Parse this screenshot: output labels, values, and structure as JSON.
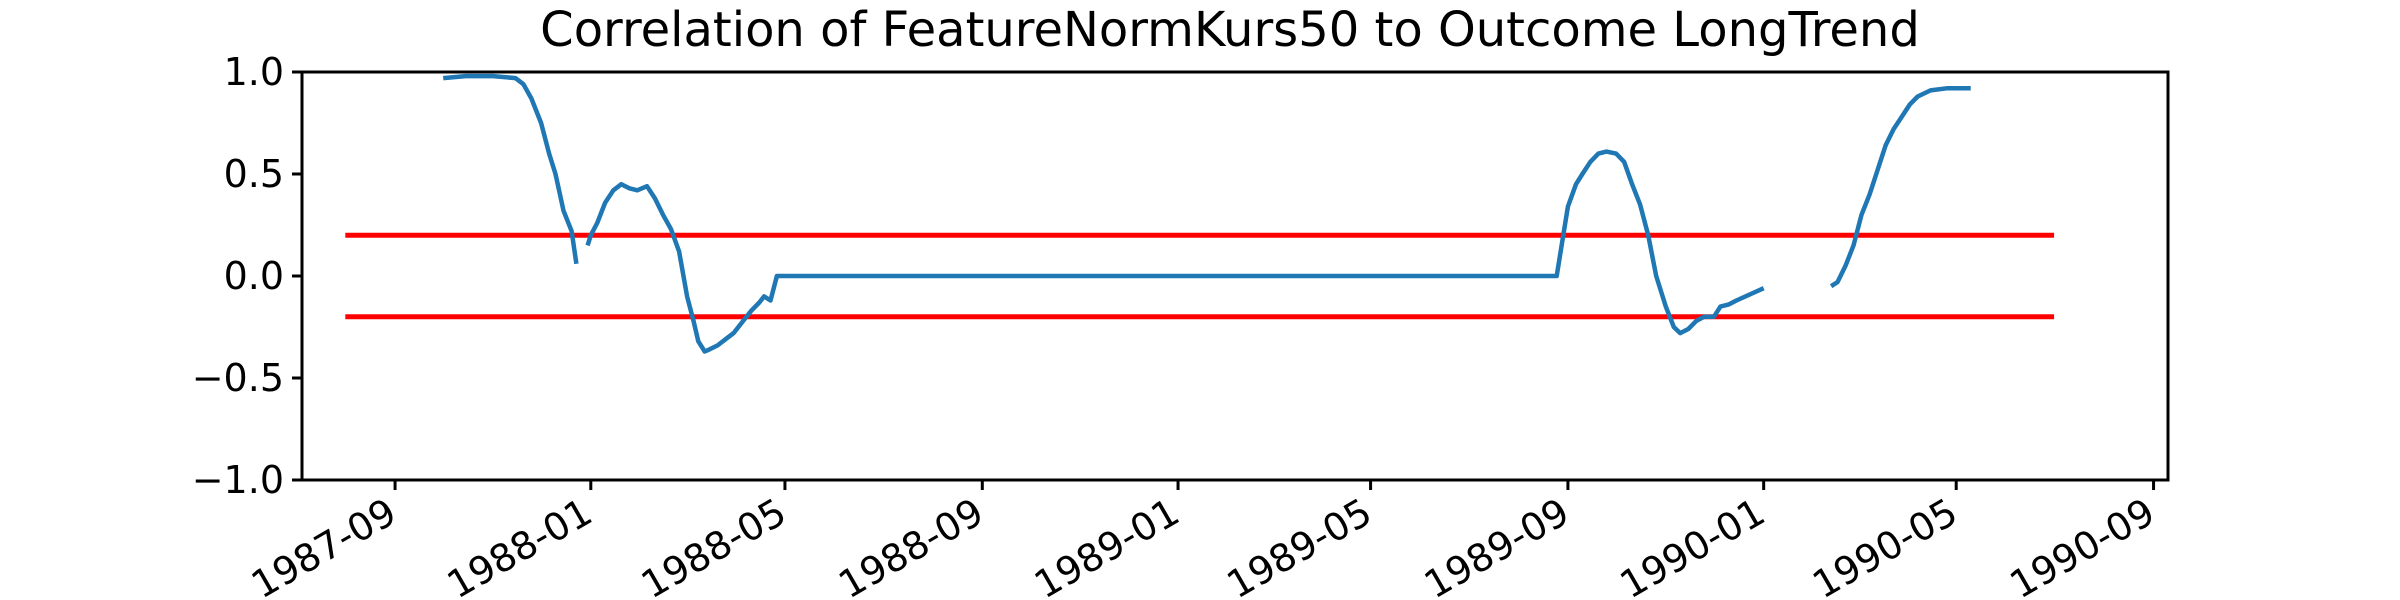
{
  "chart_data": {
    "type": "line",
    "title": "Correlation of FeatureNormKurs50 to Outcome LongTrend",
    "xlabel": "",
    "ylabel": "",
    "x_axis": "date",
    "xlim": [
      "1987-07-05",
      "1990-09-10"
    ],
    "ylim": [
      -1.0,
      1.0
    ],
    "grid": false,
    "legend": "none",
    "x_ticks": [
      "1987-09",
      "1988-01",
      "1988-05",
      "1988-09",
      "1989-01",
      "1989-05",
      "1989-09",
      "1990-01",
      "1990-05",
      "1990-09"
    ],
    "y_ticks": [
      1.0,
      0.5,
      0.0,
      -0.5,
      -1.0
    ],
    "y_tick_labels": [
      "1.0",
      "0.5",
      "0.0",
      "−0.5",
      "−1.0"
    ],
    "colors": {
      "series": "#1f77b4",
      "threshold": "#ff0000",
      "axes": "#000000"
    },
    "series": [
      {
        "segments": [
          [
            [
              "1987-10-01",
              0.97
            ],
            [
              "1987-10-15",
              0.98
            ],
            [
              "1987-11-01",
              0.98
            ],
            [
              "1987-11-15",
              0.97
            ],
            [
              "1987-11-20",
              0.94
            ],
            [
              "1987-11-25",
              0.87
            ],
            [
              "1987-12-01",
              0.75
            ],
            [
              "1987-12-06",
              0.6
            ],
            [
              "1987-12-10",
              0.5
            ],
            [
              "1987-12-15",
              0.32
            ],
            [
              "1987-12-20",
              0.22
            ],
            [
              "1987-12-23",
              0.06
            ]
          ],
          [
            [
              "1987-12-30",
              0.15
            ],
            [
              "1988-01-01",
              0.2
            ],
            [
              "1988-01-05",
              0.26
            ],
            [
              "1988-01-10",
              0.36
            ],
            [
              "1988-01-15",
              0.42
            ],
            [
              "1988-01-20",
              0.45
            ],
            [
              "1988-01-25",
              0.43
            ],
            [
              "1988-01-30",
              0.42
            ],
            [
              "1988-02-05",
              0.44
            ],
            [
              "1988-02-10",
              0.38
            ],
            [
              "1988-02-15",
              0.3
            ],
            [
              "1988-02-20",
              0.23
            ],
            [
              "1988-02-25",
              0.12
            ],
            [
              "1988-03-01",
              -0.1
            ],
            [
              "1988-03-05",
              -0.22
            ],
            [
              "1988-03-08",
              -0.32
            ],
            [
              "1988-03-12",
              -0.37
            ],
            [
              "1988-03-15",
              -0.36
            ],
            [
              "1988-03-20",
              -0.34
            ],
            [
              "1988-03-25",
              -0.31
            ],
            [
              "1988-03-30",
              -0.28
            ],
            [
              "1988-04-05",
              -0.22
            ],
            [
              "1988-04-10",
              -0.17
            ],
            [
              "1988-04-15",
              -0.13
            ],
            [
              "1988-04-18",
              -0.1
            ],
            [
              "1988-04-22",
              -0.12
            ],
            [
              "1988-04-26",
              0.0
            ],
            [
              "1988-05-05",
              0.0
            ],
            [
              "1989-08-25",
              0.0
            ],
            [
              "1989-09-01",
              0.34
            ],
            [
              "1989-09-06",
              0.45
            ],
            [
              "1989-09-10",
              0.5
            ],
            [
              "1989-09-15",
              0.56
            ],
            [
              "1989-09-20",
              0.6
            ],
            [
              "1989-09-25",
              0.61
            ],
            [
              "1989-10-01",
              0.6
            ],
            [
              "1989-10-06",
              0.56
            ],
            [
              "1989-10-11",
              0.45
            ],
            [
              "1989-10-16",
              0.35
            ],
            [
              "1989-10-21",
              0.2
            ],
            [
              "1989-10-26",
              0.0
            ],
            [
              "1989-11-01",
              -0.15
            ],
            [
              "1989-11-06",
              -0.25
            ],
            [
              "1989-11-10",
              -0.28
            ],
            [
              "1989-11-15",
              -0.26
            ],
            [
              "1989-11-20",
              -0.22
            ],
            [
              "1989-11-25",
              -0.2
            ],
            [
              "1989-12-01",
              -0.2
            ],
            [
              "1989-12-05",
              -0.15
            ],
            [
              "1989-12-10",
              -0.14
            ],
            [
              "1989-12-15",
              -0.12
            ],
            [
              "1990-01-01",
              -0.06
            ]
          ],
          [
            [
              "1990-02-12",
              -0.05
            ],
            [
              "1990-02-16",
              -0.03
            ],
            [
              "1990-02-21",
              0.05
            ],
            [
              "1990-02-26",
              0.15
            ],
            [
              "1990-03-03",
              0.3
            ],
            [
              "1990-03-08",
              0.4
            ],
            [
              "1990-03-13",
              0.52
            ],
            [
              "1990-03-18",
              0.64
            ],
            [
              "1990-03-23",
              0.72
            ],
            [
              "1990-03-28",
              0.78
            ],
            [
              "1990-04-02",
              0.84
            ],
            [
              "1990-04-07",
              0.88
            ],
            [
              "1990-04-15",
              0.91
            ],
            [
              "1990-04-25",
              0.92
            ],
            [
              "1990-05-10",
              0.92
            ]
          ]
        ]
      }
    ],
    "reference_lines": [
      {
        "y": 0.2,
        "x_range": [
          "1987-08-01",
          "1990-07-01"
        ]
      },
      {
        "y": -0.2,
        "x_range": [
          "1987-08-01",
          "1990-07-01"
        ]
      }
    ]
  }
}
